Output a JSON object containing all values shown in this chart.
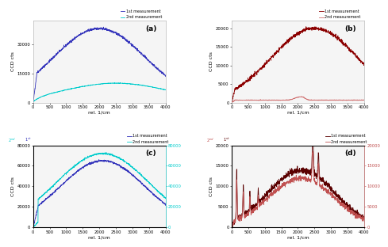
{
  "x_max": 4000,
  "panel_a": {
    "line1_color": "#3333bb",
    "line2_color": "#00cccc",
    "line1_label": "1st measurement",
    "line2_label": "2nd measurement",
    "ylim": [
      0,
      42000
    ],
    "yticks": [
      0,
      15000,
      30000
    ],
    "ylabel": "CCD cts"
  },
  "panel_b": {
    "line1_color": "#8b0000",
    "line2_color": "#d07070",
    "line1_label": "1st measurement",
    "line2_label": "2nd measurement",
    "ylim": [
      0,
      22000
    ],
    "yticks": [
      0,
      5000,
      10000,
      15000,
      20000
    ],
    "ylabel": "CCD cts"
  },
  "panel_c": {
    "line1_color": "#3333bb",
    "line2_color": "#00cccc",
    "line1_label": "1st measurement",
    "line2_label": "2nd measurement",
    "ylim": [
      0,
      80000
    ],
    "yticks": [
      0,
      20000,
      40000,
      60000,
      80000
    ],
    "ylim2": [
      0,
      80000
    ],
    "yticks2": [
      0,
      20000,
      40000,
      60000,
      80000
    ],
    "ylabel": "CCD cts"
  },
  "panel_d": {
    "line1_color": "#5a0000",
    "line2_color": "#c05050",
    "line1_label": "1st measurement",
    "line2_label": "2nd measurement",
    "ylim": [
      0,
      20000
    ],
    "yticks": [
      0,
      5000,
      10000,
      15000,
      20000
    ],
    "ylim2": [
      0,
      20000
    ],
    "yticks2": [
      0,
      5000,
      10000,
      15000,
      20000
    ],
    "ylabel": "CCD cts"
  },
  "xlabel": "rel. 1/cm",
  "bg_color": "#ffffff",
  "fig_bg": "#ffffff",
  "plot_bg": "#f5f5f5"
}
